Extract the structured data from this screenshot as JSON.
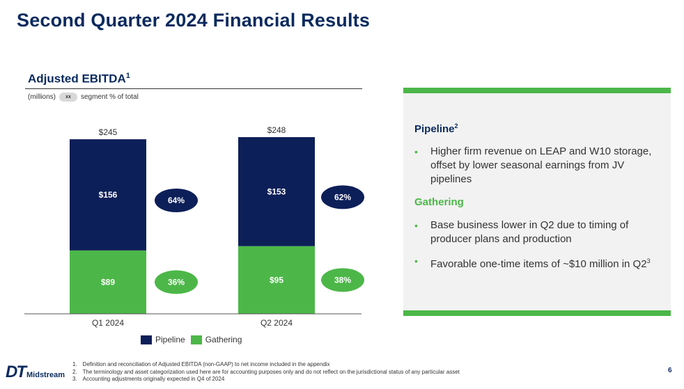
{
  "title": "Second Quarter 2024 Financial Results",
  "chart_heading": {
    "text": "Adjusted EBITDA",
    "sup": "1"
  },
  "units_label": "(millions)",
  "legend_key": {
    "pill": "xx",
    "text": "segment % of total"
  },
  "colors": {
    "pipeline": "#0d1f58",
    "gathering": "#4cb748",
    "title": "#0a2a5e"
  },
  "chart_data": {
    "type": "bar",
    "stacked": true,
    "categories": [
      "Q1 2024",
      "Q2 2024"
    ],
    "series": [
      {
        "name": "Gathering",
        "values": [
          89,
          95
        ],
        "labels": [
          "$89",
          "$95"
        ],
        "pct": [
          "36%",
          "38%"
        ],
        "color": "#4cb748"
      },
      {
        "name": "Pipeline",
        "values": [
          156,
          153
        ],
        "labels": [
          "$156",
          "$153"
        ],
        "pct": [
          "64%",
          "62%"
        ],
        "color": "#0d1f58"
      }
    ],
    "totals": [
      245,
      248
    ],
    "total_labels": [
      "$245",
      "$248"
    ],
    "ylim": [
      0,
      250
    ],
    "legend": [
      "Pipeline",
      "Gathering"
    ],
    "legend_position": "bottom",
    "grid": false
  },
  "panel": {
    "pipeline_title": "Pipeline",
    "pipeline_sup": "2",
    "pipeline_bullets": [
      "Higher firm revenue on LEAP and W10 storage, offset by lower seasonal earnings from JV pipelines"
    ],
    "gathering_title": "Gathering",
    "gathering_bullets": [
      "Base business lower in Q2 due to timing of producer plans and production",
      "Favorable one-time items of ~$10 million in Q2"
    ],
    "gathering_bullet2_sup": "3"
  },
  "logo": {
    "mark": "DT",
    "word": "Midstream"
  },
  "footnotes": [
    {
      "num": "1.",
      "text": "Definition and reconciliation of Adjusted EBITDA (non-GAAP) to net income included in the appendix"
    },
    {
      "num": "2.",
      "text": "The terminology and asset categorization used here are for accounting purposes only and do not reflect on the jurisdictional status of any particular asset"
    },
    {
      "num": "3.",
      "text": "Accounting adjustments originally expected in Q4 of 2024"
    }
  ],
  "page_number": "6"
}
